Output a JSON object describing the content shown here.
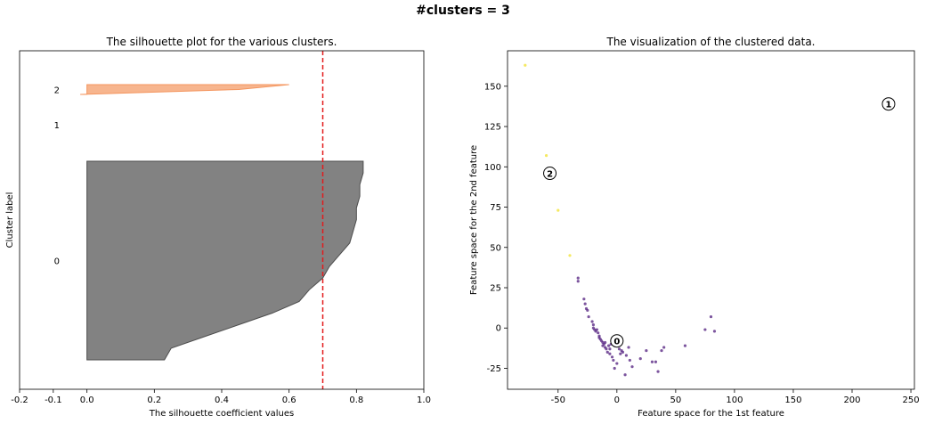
{
  "figure_title": "#clusters = 3",
  "chart_data": [
    {
      "type": "area",
      "title": "The silhouette plot for the various clusters.",
      "xlabel": "The silhouette coefficient values",
      "ylabel": "Cluster label",
      "xlim": [
        -0.2,
        1.0
      ],
      "xticks": [
        "-0.2",
        "-0.1",
        "0.0",
        "0.2",
        "0.4",
        "0.6",
        "0.8",
        "1.0"
      ],
      "average_silhouette": 0.7,
      "average_line_color": "#e31a1c",
      "grid": false,
      "clusters": [
        {
          "label": "0",
          "color": "#4d4d4d",
          "silhouette_values": [
            0.82,
            0.82,
            0.81,
            0.81,
            0.8,
            0.8,
            0.79,
            0.78,
            0.75,
            0.72,
            0.7,
            0.66,
            0.63,
            0.55,
            0.45,
            0.35,
            0.25,
            0.23
          ]
        },
        {
          "label": "1",
          "color": "#9e9e9e",
          "silhouette_values": []
        },
        {
          "label": "2",
          "color": "#f4955e",
          "silhouette_values": [
            0.6,
            0.45,
            -0.02
          ]
        }
      ]
    },
    {
      "type": "scatter",
      "title": "The visualization of the clustered data.",
      "xlabel": "Feature space for the 1st feature",
      "ylabel": "Feature space for the 2nd feature",
      "xlim": [
        -93,
        253
      ],
      "ylim": [
        -38,
        172
      ],
      "xticks": [
        -50,
        0,
        50,
        100,
        150,
        200,
        250
      ],
      "yticks": [
        -25,
        0,
        25,
        50,
        75,
        100,
        125,
        150
      ],
      "grid": false,
      "centers": [
        {
          "label": "0",
          "x": 0,
          "y": -8
        },
        {
          "label": "1",
          "x": 231,
          "y": 139
        },
        {
          "label": "2",
          "x": -57,
          "y": 96
        }
      ],
      "series": [
        {
          "cluster": "0",
          "color": "#5b2a86",
          "points": [
            [
              -33,
              31
            ],
            [
              -33,
              29
            ],
            [
              -28,
              18
            ],
            [
              -27,
              15
            ],
            [
              -26,
              12
            ],
            [
              -25,
              11
            ],
            [
              -24,
              7
            ],
            [
              -21,
              4
            ],
            [
              -20,
              2
            ],
            [
              -20,
              0
            ],
            [
              -19,
              -1
            ],
            [
              -18,
              -2
            ],
            [
              -16,
              -3
            ],
            [
              -15,
              -5
            ],
            [
              -14,
              -7
            ],
            [
              -13,
              -8
            ],
            [
              -12,
              -9
            ],
            [
              -11,
              -10
            ],
            [
              -10,
              -12
            ],
            [
              -9,
              -13
            ],
            [
              -8,
              -15
            ],
            [
              -6,
              -16
            ],
            [
              -5,
              -10
            ],
            [
              -4,
              -18
            ],
            [
              -3,
              -20
            ],
            [
              -2,
              -25
            ],
            [
              0,
              -22
            ],
            [
              2,
              -13
            ],
            [
              3,
              -16
            ],
            [
              5,
              -15
            ],
            [
              7,
              -29
            ],
            [
              10,
              -12
            ],
            [
              11,
              -20
            ],
            [
              13,
              -24
            ],
            [
              20,
              -19
            ],
            [
              25,
              -14
            ],
            [
              30,
              -21
            ],
            [
              33,
              -21
            ],
            [
              35,
              -27
            ],
            [
              38,
              -14
            ],
            [
              40,
              -12
            ],
            [
              58,
              -11
            ],
            [
              75,
              -1
            ],
            [
              80,
              7
            ],
            [
              83,
              -2
            ],
            [
              -17,
              -1
            ],
            [
              -15,
              -6
            ],
            [
              -12,
              -11
            ],
            [
              -6,
              -13
            ],
            [
              -2,
              -11
            ],
            [
              4,
              -14
            ],
            [
              8,
              -17
            ],
            [
              -10,
              -9
            ],
            [
              -7,
              -11
            ]
          ]
        },
        {
          "cluster": "1",
          "color": "#21918c",
          "points": []
        },
        {
          "cluster": "2",
          "color": "#f2e33a",
          "points": [
            [
              -78,
              163
            ],
            [
              -60,
              107
            ],
            [
              -50,
              73
            ],
            [
              -40,
              45
            ]
          ]
        }
      ]
    }
  ]
}
